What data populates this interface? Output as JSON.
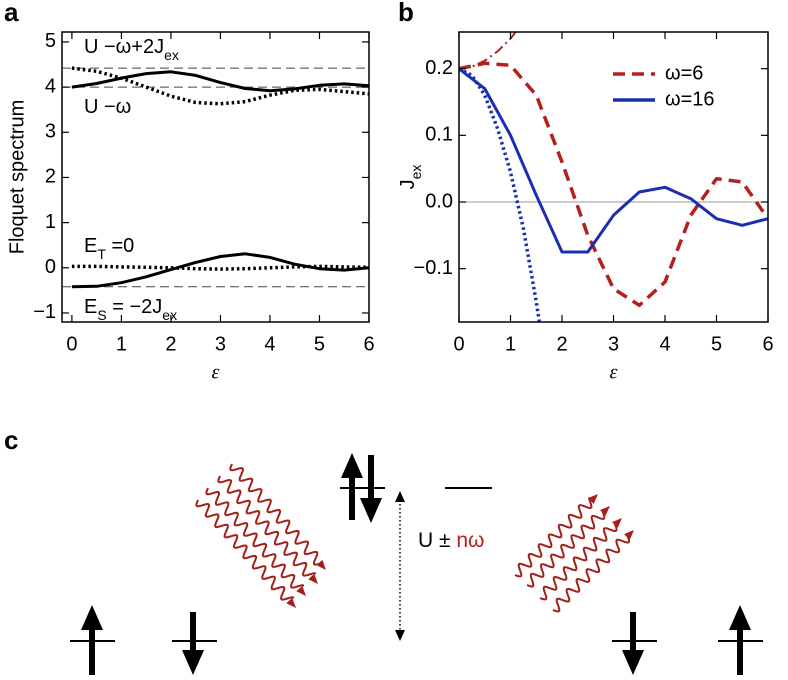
{
  "panel_labels": [
    "a",
    "b",
    "c"
  ],
  "chart_data": [
    {
      "type": "line",
      "xlabel": "ε",
      "ylabel": "Floquet spectrum",
      "xlim": [
        -0.2,
        6
      ],
      "ylim": [
        -1.2,
        5.22
      ],
      "xticks": [
        0,
        1,
        2,
        3,
        4,
        5,
        6
      ],
      "yticks": [
        {
          "value": -1,
          "label": "−1"
        },
        0,
        1,
        2,
        3,
        4,
        5
      ],
      "grid": false,
      "x": [
        0,
        0.5,
        1,
        1.5,
        2,
        2.5,
        3,
        3.5,
        4,
        4.5,
        5,
        5.5,
        6
      ],
      "series": [
        {
          "color": "#000000",
          "style": "solid",
          "values": [
            4.0,
            4.08,
            4.2,
            4.3,
            4.34,
            4.26,
            4.1,
            3.97,
            3.92,
            3.96,
            4.04,
            4.07,
            4.03
          ]
        },
        {
          "color": "#000000",
          "style": "dotted",
          "values": [
            4.42,
            4.35,
            4.2,
            4.0,
            3.8,
            3.66,
            3.63,
            3.68,
            3.82,
            3.93,
            3.95,
            3.9,
            3.85
          ]
        },
        {
          "color": "#000000",
          "style": "solid",
          "values": [
            -0.42,
            -0.41,
            -0.33,
            -0.2,
            -0.04,
            0.12,
            0.25,
            0.31,
            0.23,
            0.08,
            -0.02,
            -0.05,
            0.0
          ]
        },
        {
          "color": "#000000",
          "style": "dotted",
          "values": [
            0.03,
            0.03,
            0.02,
            0.01,
            0.0,
            -0.02,
            -0.03,
            -0.02,
            0.0,
            0.02,
            0.03,
            0.02,
            0.01
          ]
        }
      ],
      "reference_lines": [
        4.42,
        4.0,
        -0.42
      ],
      "annotations": [
        {
          "parts": [
            {
              "text": "U −ω+2J"
            },
            {
              "text": "ex",
              "sub": true
            }
          ]
        },
        {
          "parts": [
            {
              "text": "U −ω"
            }
          ]
        },
        {
          "parts": [
            {
              "text": "E"
            },
            {
              "text": "T",
              "sub": true
            },
            {
              "text": " =0"
            }
          ]
        },
        {
          "parts": [
            {
              "text": "E"
            },
            {
              "text": "S",
              "sub": true
            },
            {
              "text": " = −2J"
            },
            {
              "text": "ex",
              "sub": true
            }
          ]
        }
      ]
    },
    {
      "type": "line",
      "xlabel": "ε",
      "ylabel": [
        {
          "text": "J"
        },
        {
          "text": "ex",
          "sub": true
        }
      ],
      "xlim": [
        0,
        6
      ],
      "ylim": [
        -0.18,
        0.255
      ],
      "xticks": [
        0,
        1,
        2,
        3,
        4,
        5,
        6
      ],
      "yticks": [
        {
          "value": -0.1,
          "label": "−0.1"
        },
        {
          "value": 0,
          "label": "0.0"
        },
        0.1,
        0.2
      ],
      "grid": false,
      "zero_line": true,
      "legend": "top-right",
      "x": [
        0,
        0.5,
        1,
        1.5,
        2,
        2.5,
        3,
        3.5,
        4,
        4.5,
        5,
        5.5,
        6
      ],
      "series": [
        {
          "name": "ω=6",
          "color": "#b5201f",
          "style": "dashed",
          "values": [
            0.2,
            0.208,
            0.205,
            0.16,
            0.06,
            -0.05,
            -0.13,
            -0.155,
            -0.12,
            -0.02,
            0.035,
            0.03,
            -0.025
          ]
        },
        {
          "name": "ω=16",
          "color": "#1a2fb0",
          "style": "solid",
          "values": [
            0.2,
            0.17,
            0.1,
            0.01,
            -0.075,
            -0.075,
            -0.02,
            0.015,
            0.022,
            0.005,
            -0.025,
            -0.035,
            -0.025
          ]
        },
        {
          "color": "#b5201f",
          "style": "dashdot",
          "x": [
            0,
            0.25,
            0.5,
            0.75,
            1.0,
            1.1
          ],
          "values": [
            0.2,
            0.203,
            0.212,
            0.226,
            0.245,
            0.255
          ]
        },
        {
          "color": "#1a2fb0",
          "style": "dotted",
          "x": [
            0,
            0.25,
            0.5,
            0.75,
            1.0,
            1.25,
            1.5,
            1.58
          ],
          "values": [
            0.2,
            0.19,
            0.16,
            0.11,
            0.045,
            -0.04,
            -0.15,
            -0.19
          ]
        }
      ]
    }
  ],
  "diagram": {
    "energy_label": [
      {
        "text": "U ± "
      },
      {
        "text": "nω",
        "color": "#b5201f"
      }
    ]
  }
}
